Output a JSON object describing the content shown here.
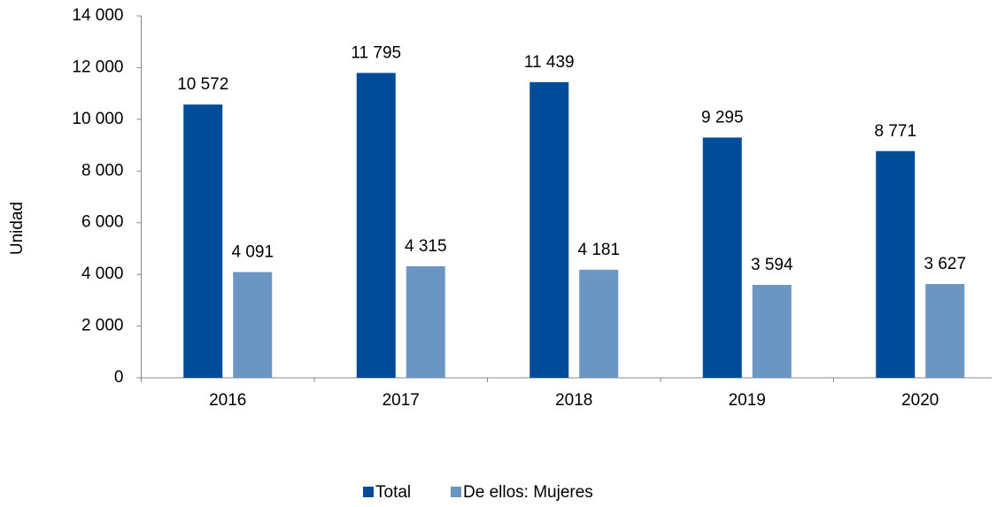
{
  "chart_data": {
    "type": "bar",
    "y_label": "Unidad",
    "categories": [
      "2016",
      "2017",
      "2018",
      "2019",
      "2020"
    ],
    "series": [
      {
        "name": "Total",
        "color": "#004c99",
        "values": [
          10572,
          11795,
          11439,
          9295,
          8771
        ],
        "value_labels": [
          "10 572",
          "11 795",
          "11 439",
          "9 295",
          "8 771"
        ]
      },
      {
        "name": "De ellos: Mujeres",
        "color": "#6b96c4",
        "values": [
          4091,
          4315,
          4181,
          3594,
          3627
        ],
        "value_labels": [
          "4 091",
          "4 315",
          "4 181",
          "3 594",
          "3 627"
        ]
      }
    ],
    "ylim": [
      0,
      14000
    ],
    "yticks": [
      0,
      {
        "value": 2000,
        "label": "2 000"
      },
      {
        "value": 4000,
        "label": "4 000"
      },
      {
        "value": 6000,
        "label": "6 000"
      },
      {
        "value": 8000,
        "label": "8 000"
      },
      {
        "value": 10000,
        "label": "10 000"
      },
      {
        "value": 12000,
        "label": "12 000"
      },
      {
        "value": 14000,
        "label": "14 000"
      }
    ],
    "grid": false,
    "legend": "bottom"
  }
}
